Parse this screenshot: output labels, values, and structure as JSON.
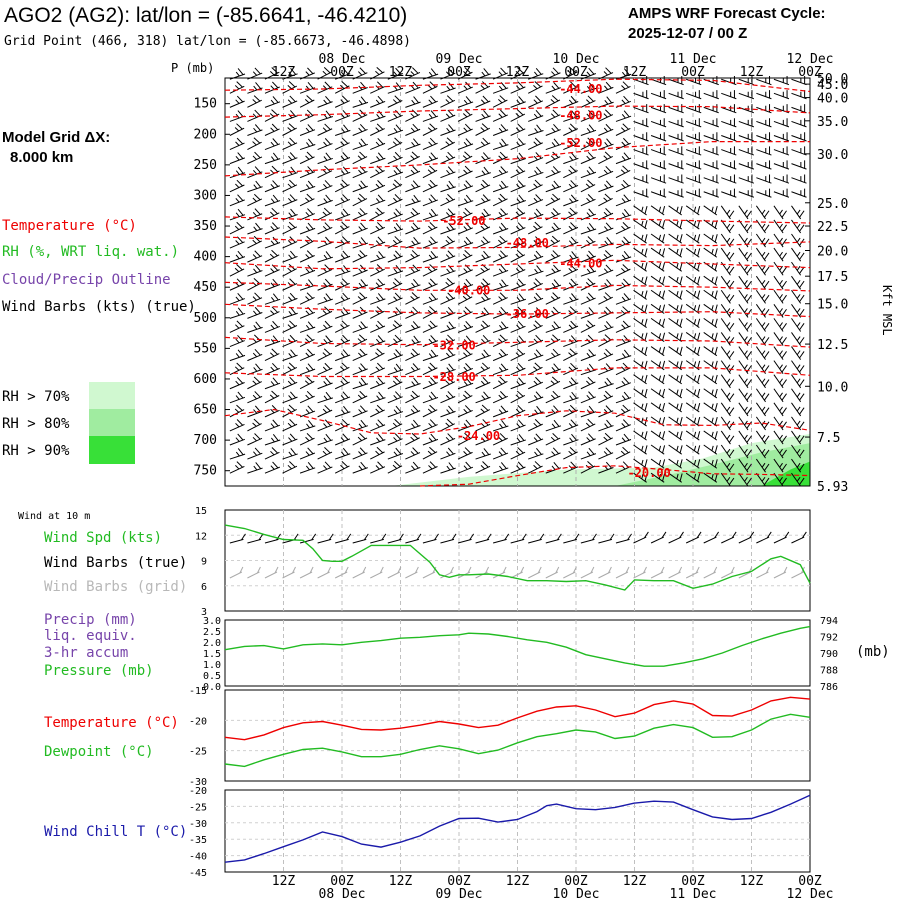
{
  "header": {
    "title": "AGO2 (AG2):  lat/lon = (-85.6641, -46.4210)",
    "grid_point": "Grid Point (466, 318) lat/lon = (-85.6673, -46.4898)",
    "forecast_title": "AMPS WRF Forecast Cycle:",
    "forecast_cycle": "2025-12-07 / 00  Z"
  },
  "left_panel": {
    "model_grid": "Model Grid ΔX:",
    "model_res": "8.000 km",
    "legend_temperature": "Temperature (°C)",
    "legend_rh": "RH (%, WRT liq. wat.)",
    "legend_cloud": "Cloud/Precip Outline",
    "legend_wind": "Wind Barbs (kts) (true)",
    "rh_70": "RH > 70%",
    "rh_80": "RH > 80%",
    "rh_90": "RH > 90%",
    "p_label": "P (mb)",
    "kft_label": "Kft MSL"
  },
  "bottom_panels": {
    "wind10m": "Wind at 10 m",
    "wind_spd": "Wind Spd (kts)",
    "barbs_true": "Wind Barbs (true)",
    "barbs_grid": "Wind Barbs (grid)",
    "precip1": "Precip (mm)",
    "precip2": "liq. equiv.",
    "precip3": "3-hr accum",
    "pressure": "Pressure (mb)",
    "mb_unit": "(mb)",
    "temperature": "Temperature (°C)",
    "dewpoint": "Dewpoint (°C)",
    "wind_chill": "Wind Chill T (°C)"
  },
  "colors": {
    "temperature": "#ee0000",
    "rh_green": "#22bb22",
    "cloud": "#7744aa",
    "wind": "#000000",
    "grid_barbs": "#aaaaaa",
    "wind_chill": "#1a1aaa",
    "rh70": "#d0f8d0",
    "rh80": "#a0eca0",
    "rh90": "#38e038"
  },
  "time_axis": {
    "hour_labels": [
      "12Z",
      "00Z",
      "12Z",
      "00Z",
      "12Z",
      "00Z",
      "12Z",
      "00Z",
      "12Z",
      "00Z"
    ],
    "hour_values": [
      12,
      24,
      36,
      48,
      60,
      72,
      84,
      96,
      108,
      120
    ],
    "date_labels": [
      "08 Dec",
      "09 Dec",
      "10 Dec",
      "11 Dec",
      "12 Dec"
    ],
    "date_values": [
      24,
      48,
      72,
      96,
      120
    ]
  },
  "chart_data": [
    {
      "type": "line",
      "name": "upper-air cross section",
      "y_axis": "P (mb)",
      "pressure_ticks": [
        150,
        200,
        250,
        300,
        350,
        400,
        450,
        500,
        550,
        600,
        650,
        700,
        750
      ],
      "height_ticks_kft": [
        "50.0",
        "45.0",
        "40.0",
        "35.0",
        "30.0",
        "25.0",
        "22.5",
        "20.0",
        "17.5",
        "15.0",
        "12.5",
        "10.0",
        "7.5",
        "5.93"
      ],
      "height_tick_pressures": [
        108,
        118,
        140,
        178,
        232,
        312,
        350,
        390,
        432,
        477,
        543,
        612,
        695,
        775
      ],
      "ylim": [
        775,
        108
      ],
      "xlim": [
        0,
        120
      ],
      "isotherms": [
        {
          "label": "-44.00",
          "x": [
            0,
            20,
            40,
            60,
            80,
            100,
            120
          ],
          "p": [
            128,
            126,
            120,
            116,
            110,
            112,
            130
          ],
          "label_x": 73,
          "label_p": 124
        },
        {
          "label": "-48.00",
          "x": [
            0,
            20,
            40,
            60,
            80,
            100,
            120
          ],
          "p": [
            172,
            168,
            162,
            158,
            154,
            155,
            165
          ],
          "label_x": 73,
          "label_p": 168
        },
        {
          "label": "-52.00",
          "x": [
            0,
            20,
            40,
            60,
            80,
            100,
            120
          ],
          "p": [
            268,
            258,
            250,
            240,
            222,
            212,
            212
          ],
          "label_x": 73,
          "label_p": 213
        },
        {
          "label": "-52.00",
          "x": [
            0,
            20,
            40,
            60,
            80,
            100,
            120
          ],
          "p": [
            335,
            340,
            342,
            337,
            338,
            342,
            345
          ],
          "label_x": 49,
          "label_p": 340
        },
        {
          "label": "-48.00",
          "x": [
            0,
            20,
            40,
            60,
            80,
            100,
            120
          ],
          "p": [
            368,
            375,
            386,
            385,
            380,
            382,
            376
          ],
          "label_x": 62,
          "label_p": 376
        },
        {
          "label": "-44.00",
          "x": [
            0,
            20,
            40,
            60,
            80,
            100,
            120
          ],
          "p": [
            410,
            420,
            418,
            412,
            406,
            412,
            418
          ],
          "label_x": 73,
          "label_p": 410
        },
        {
          "label": "-40.00",
          "x": [
            0,
            20,
            40,
            60,
            80,
            100,
            120
          ],
          "p": [
            442,
            448,
            455,
            455,
            447,
            450,
            456
          ],
          "label_x": 50,
          "label_p": 454
        },
        {
          "label": "-36.00",
          "x": [
            0,
            20,
            40,
            60,
            80,
            100,
            120
          ],
          "p": [
            478,
            486,
            492,
            494,
            492,
            490,
            498
          ],
          "label_x": 62,
          "label_p": 492
        },
        {
          "label": "-32.00",
          "x": [
            0,
            20,
            40,
            60,
            80,
            100,
            120
          ],
          "p": [
            532,
            542,
            544,
            540,
            536,
            538,
            548
          ],
          "label_x": 47,
          "label_p": 544
        },
        {
          "label": "-28.00",
          "x": [
            0,
            20,
            40,
            60,
            80,
            100,
            120
          ],
          "p": [
            590,
            596,
            596,
            594,
            582,
            582,
            594
          ],
          "label_x": 47,
          "label_p": 595
        },
        {
          "label": "-24.00",
          "x": [
            0,
            10,
            20,
            30,
            40,
            50,
            60,
            70,
            80,
            90,
            100,
            110,
            120
          ],
          "p": [
            660,
            650,
            668,
            688,
            690,
            678,
            660,
            652,
            656,
            675,
            676,
            672,
            684
          ],
          "label_x": 52,
          "label_p": 692
        },
        {
          "label": "-20.00",
          "x": [
            40,
            50,
            60,
            70,
            80,
            90,
            100,
            110,
            120
          ],
          "p": [
            775,
            772,
            758,
            745,
            742,
            748,
            755,
            756,
            758
          ],
          "label_x": 87,
          "label_p": 752
        }
      ],
      "rh_shading": [
        {
          "level": "RH > 70%",
          "x": [
            34,
            50,
            70,
            88,
            98,
            108,
            120,
            120,
            34
          ],
          "p": [
            775,
            760,
            748,
            745,
            730,
            705,
            690,
            775,
            775
          ]
        },
        {
          "level": "RH > 80%",
          "x": [
            80,
            92,
            100,
            110,
            120,
            120,
            80
          ],
          "p": [
            775,
            755,
            740,
            720,
            705,
            775,
            775
          ]
        },
        {
          "level": "RH > 90%",
          "x": [
            110,
            116,
            120,
            120,
            110
          ],
          "p": [
            775,
            748,
            735,
            775,
            775
          ]
        }
      ]
    },
    {
      "type": "line",
      "name": "10 m wind speed",
      "ylabel": "Wind Spd (kts)",
      "ylim": [
        3,
        15
      ],
      "yticks": [
        3,
        6,
        9,
        12,
        15
      ],
      "x": [
        0,
        4,
        8,
        12,
        16,
        18,
        20,
        22,
        24,
        26,
        30,
        34,
        38,
        42,
        44,
        46,
        48,
        50,
        54,
        58,
        62,
        66,
        70,
        74,
        78,
        82,
        84,
        88,
        92,
        96,
        100,
        104,
        108,
        112,
        114,
        118,
        120
      ],
      "values": [
        13.2,
        12.8,
        12.1,
        11.5,
        11.4,
        10.4,
        9.0,
        8.9,
        8.9,
        9.5,
        10.8,
        10.8,
        10.8,
        8.8,
        7.3,
        7.0,
        7.3,
        7.3,
        7.4,
        7.1,
        6.6,
        6.6,
        6.5,
        6.6,
        6.1,
        5.5,
        6.7,
        6.6,
        6.6,
        5.7,
        6.2,
        7.1,
        7.7,
        9.2,
        9.5,
        8.5,
        6.3
      ]
    },
    {
      "type": "line",
      "name": "surface pressure",
      "ylabel": "Pressure (mb)",
      "ylim": [
        786,
        794
      ],
      "yticks": [
        786,
        788,
        790,
        792,
        794
      ],
      "precip_ylim": [
        0,
        3.0
      ],
      "precip_ticks": [
        "0.0",
        "0.5",
        "1.0",
        "1.5",
        "2.0",
        "2.5",
        "3.0"
      ],
      "x": [
        0,
        4,
        8,
        12,
        16,
        20,
        24,
        28,
        32,
        36,
        40,
        44,
        48,
        50,
        54,
        58,
        62,
        66,
        70,
        74,
        78,
        82,
        86,
        90,
        94,
        98,
        102,
        106,
        110,
        114,
        118,
        120
      ],
      "values": [
        790.4,
        790.8,
        790.9,
        790.5,
        791.0,
        791.1,
        791.0,
        791.3,
        791.5,
        791.8,
        791.9,
        792.1,
        792.2,
        792.4,
        792.3,
        792.0,
        791.6,
        791.3,
        790.7,
        789.8,
        789.3,
        788.8,
        788.4,
        788.4,
        788.8,
        789.3,
        790.0,
        790.9,
        791.7,
        792.4,
        793.0,
        793.2
      ]
    },
    {
      "type": "line",
      "name": "temperature and dewpoint",
      "ylim": [
        -30,
        -15
      ],
      "yticks": [
        -30,
        -25,
        -20,
        -15
      ],
      "x": [
        0,
        4,
        8,
        12,
        16,
        20,
        24,
        28,
        32,
        36,
        40,
        44,
        48,
        52,
        56,
        60,
        64,
        68,
        72,
        76,
        80,
        84,
        88,
        92,
        96,
        100,
        104,
        108,
        112,
        116,
        120
      ],
      "series": [
        {
          "name": "Temperature (°C)",
          "values": [
            -22.8,
            -23.2,
            -22.4,
            -21.2,
            -20.4,
            -20.2,
            -20.8,
            -21.5,
            -21.6,
            -21.3,
            -20.8,
            -20.2,
            -20.6,
            -21.2,
            -20.8,
            -19.6,
            -18.5,
            -17.8,
            -17.6,
            -18.3,
            -19.4,
            -18.8,
            -17.4,
            -16.8,
            -17.3,
            -19.2,
            -19.3,
            -18.3,
            -16.8,
            -16.2,
            -16.5
          ]
        },
        {
          "name": "Dewpoint (°C)",
          "values": [
            -27.2,
            -27.6,
            -26.5,
            -25.6,
            -24.8,
            -24.6,
            -25.2,
            -26.0,
            -26.0,
            -25.6,
            -24.8,
            -24.2,
            -24.7,
            -25.5,
            -24.9,
            -23.7,
            -22.7,
            -22.2,
            -21.6,
            -21.9,
            -23.0,
            -22.6,
            -21.3,
            -20.7,
            -21.2,
            -22.8,
            -22.7,
            -21.6,
            -19.8,
            -19.0,
            -19.5
          ]
        }
      ]
    },
    {
      "type": "line",
      "name": "wind chill",
      "ylabel": "Wind Chill T (°C)",
      "ylim": [
        -45,
        -20
      ],
      "yticks": [
        -45,
        -40,
        -35,
        -30,
        -25,
        -20
      ],
      "x": [
        0,
        4,
        8,
        12,
        16,
        20,
        24,
        28,
        32,
        36,
        40,
        44,
        48,
        52,
        56,
        60,
        64,
        66,
        68,
        72,
        76,
        80,
        84,
        88,
        92,
        96,
        100,
        104,
        108,
        112,
        116,
        120
      ],
      "values": [
        -42.0,
        -41.3,
        -39.4,
        -37.3,
        -35.2,
        -32.8,
        -34.2,
        -36.5,
        -37.4,
        -35.9,
        -34.0,
        -31.0,
        -28.7,
        -28.6,
        -29.8,
        -29.0,
        -26.6,
        -24.8,
        -24.3,
        -25.7,
        -26.0,
        -25.3,
        -24.0,
        -23.4,
        -23.7,
        -26.0,
        -28.2,
        -29.0,
        -28.7,
        -26.8,
        -24.3,
        -21.6
      ]
    }
  ]
}
